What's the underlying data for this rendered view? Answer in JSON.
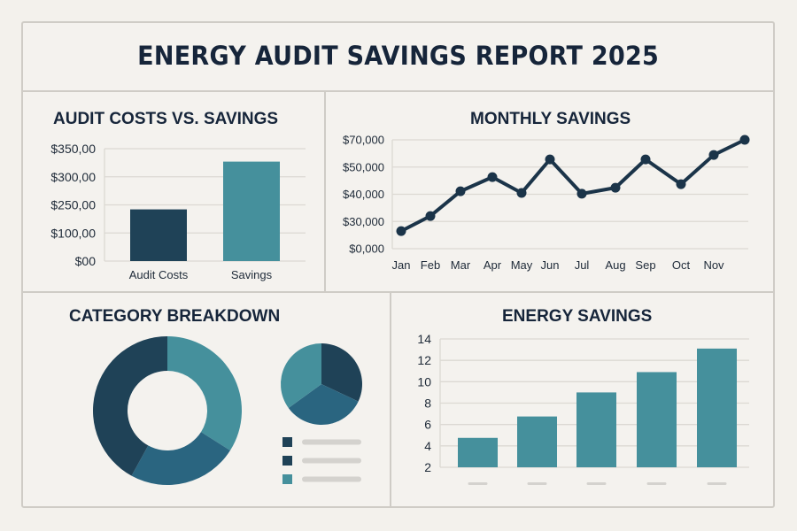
{
  "report": {
    "title": "ENERGY AUDIT SAVINGS REPORT 2025"
  },
  "colors": {
    "navy": "#1f4257",
    "mid_blue": "#2a6580",
    "teal": "#45909c",
    "text": "#16253a",
    "grid": "#dcd9d3",
    "placeholder": "#d4d2ce"
  },
  "chart_data": [
    {
      "id": "audit-costs-vs-savings",
      "type": "bar",
      "title": "AUDIT COSTS VS. SAVINGS",
      "categories": [
        "Audit Costs",
        "Savings"
      ],
      "values": [
        226,
        327
      ],
      "bar_colors": [
        "#1f4257",
        "#45909c"
      ],
      "yticks": [
        {
          "label": "$00",
          "value": 0
        },
        {
          "label": "$100,00",
          "value": 100
        },
        {
          "label": "$250,00",
          "value": 250
        },
        {
          "label": "$300,00",
          "value": 300
        },
        {
          "label": "$350,00",
          "value": 350
        }
      ],
      "ylim": [
        0,
        350
      ],
      "grid": true,
      "xlabel": "",
      "ylabel": ""
    },
    {
      "id": "monthly-savings",
      "type": "line",
      "title": "MONTHLY SAVINGS",
      "x": [
        "Jan",
        "Feb",
        "Mar",
        "Apr",
        "May",
        "Jun",
        "Jul",
        "Aug",
        "Sep",
        "Oct",
        "Nov",
        ""
      ],
      "series": [
        {
          "name": "Monthly Savings",
          "values": [
            19400,
            32000,
            41100,
            46300,
            40500,
            55600,
            40200,
            42400,
            55600,
            43700,
            58900,
            70000
          ],
          "color": "#1b3449"
        }
      ],
      "yticks": [
        {
          "label": "$0,000",
          "value": 0
        },
        {
          "label": "$30,000",
          "value": 30000
        },
        {
          "label": "$40,000",
          "value": 40000
        },
        {
          "label": "$50,000",
          "value": 50000
        },
        {
          "label": "$70,000",
          "value": 70000
        }
      ],
      "ylim": [
        0,
        70000
      ],
      "grid": true,
      "xlabel": "",
      "ylabel": ""
    },
    {
      "id": "category-breakdown-donut",
      "type": "pie",
      "title": "CATEGORY BREAKDOWN",
      "variant": "donut",
      "slices": [
        {
          "label": "",
          "value": 34,
          "color": "#45909c"
        },
        {
          "label": "",
          "value": 24,
          "color": "#2a6580"
        },
        {
          "label": "",
          "value": 42,
          "color": "#1f4257"
        }
      ]
    },
    {
      "id": "category-breakdown-pie",
      "type": "pie",
      "title": "",
      "slices": [
        {
          "label": "",
          "value": 32,
          "color": "#1f4257"
        },
        {
          "label": "",
          "value": 33,
          "color": "#2a6580"
        },
        {
          "label": "",
          "value": 35,
          "color": "#45909c"
        }
      ],
      "legend": [
        {
          "color": "#1f4257",
          "label": ""
        },
        {
          "color": "#1f4257",
          "label": ""
        },
        {
          "color": "#45909c",
          "label": ""
        }
      ],
      "legend_placement": "bottom-right"
    },
    {
      "id": "energy-savings",
      "type": "bar",
      "title": "ENERGY SAVINGS",
      "categories": [
        "",
        "",
        "",
        "",
        ""
      ],
      "values": [
        4.75,
        6.75,
        9.0,
        10.9,
        13.1
      ],
      "bar_color": "#45909c",
      "yticks": [
        {
          "label": "2",
          "value": 2
        },
        {
          "label": "4",
          "value": 4
        },
        {
          "label": "6",
          "value": 6
        },
        {
          "label": "8",
          "value": 8
        },
        {
          "label": "10",
          "value": 10
        },
        {
          "label": "12",
          "value": 12
        },
        {
          "label": "14",
          "value": 14
        }
      ],
      "ylim": [
        2,
        14
      ],
      "grid": true,
      "xlabel": "",
      "ylabel": ""
    }
  ]
}
